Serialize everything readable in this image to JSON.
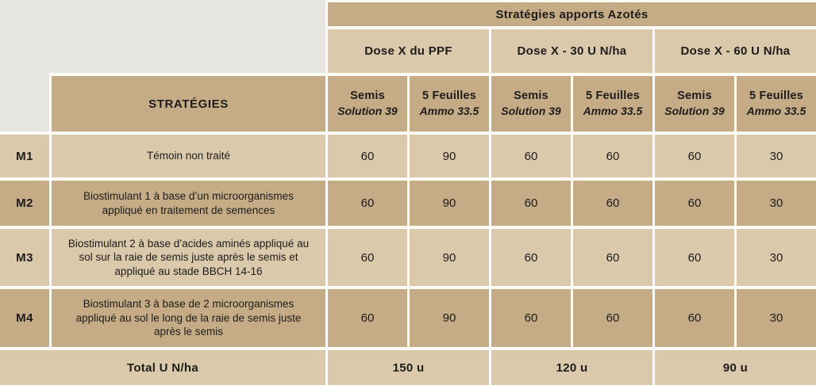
{
  "colors": {
    "dark_tan": "#c5ac86",
    "light_tan": "#dbc9ac",
    "gray": "#e7e5e2",
    "gap_white": "#fdfbf6",
    "text": "#1d1c1a"
  },
  "table": {
    "group_header": "Stratégies apports Azotés",
    "dose_headers": [
      "Dose X du PPF",
      "Dose X - 30 U N/ha",
      "Dose X - 60 U N/ha"
    ],
    "strategies_header": "STRATÉGIES",
    "sub_headers": [
      {
        "stage": "Semis",
        "product": "Solution 39"
      },
      {
        "stage": "5 Feuilles",
        "product": "Ammo 33.5"
      },
      {
        "stage": "Semis",
        "product": "Solution 39"
      },
      {
        "stage": "5 Feuilles",
        "product": "Ammo 33.5"
      },
      {
        "stage": "Semis",
        "product": "Solution 39"
      },
      {
        "stage": "5 Feuilles",
        "product": "Ammo 33.5"
      }
    ],
    "rows": [
      {
        "code": "M1",
        "description": "Témoin non traité",
        "values": [
          "60",
          "90",
          "60",
          "60",
          "60",
          "30"
        ]
      },
      {
        "code": "M2",
        "description": "Biostimulant 1 à base d’un microorganismes appliqué en traitement de semences",
        "values": [
          "60",
          "90",
          "60",
          "60",
          "60",
          "30"
        ]
      },
      {
        "code": "M3",
        "description": "Biostimulant 2 à base d’acides aminés appliqué au sol sur la raie de semis juste après le semis et appliqué au stade BBCH 14-16",
        "values": [
          "60",
          "90",
          "60",
          "60",
          "60",
          "30"
        ]
      },
      {
        "code": "M4",
        "description": "Biostimulant 3 à base de 2 microorganismes appliqué au sol le long de la raie de semis juste après le semis",
        "values": [
          "60",
          "90",
          "60",
          "60",
          "60",
          "30"
        ]
      }
    ],
    "total_label": "Total U N/ha",
    "totals": [
      "150 u",
      "120 u",
      "90 u"
    ]
  }
}
